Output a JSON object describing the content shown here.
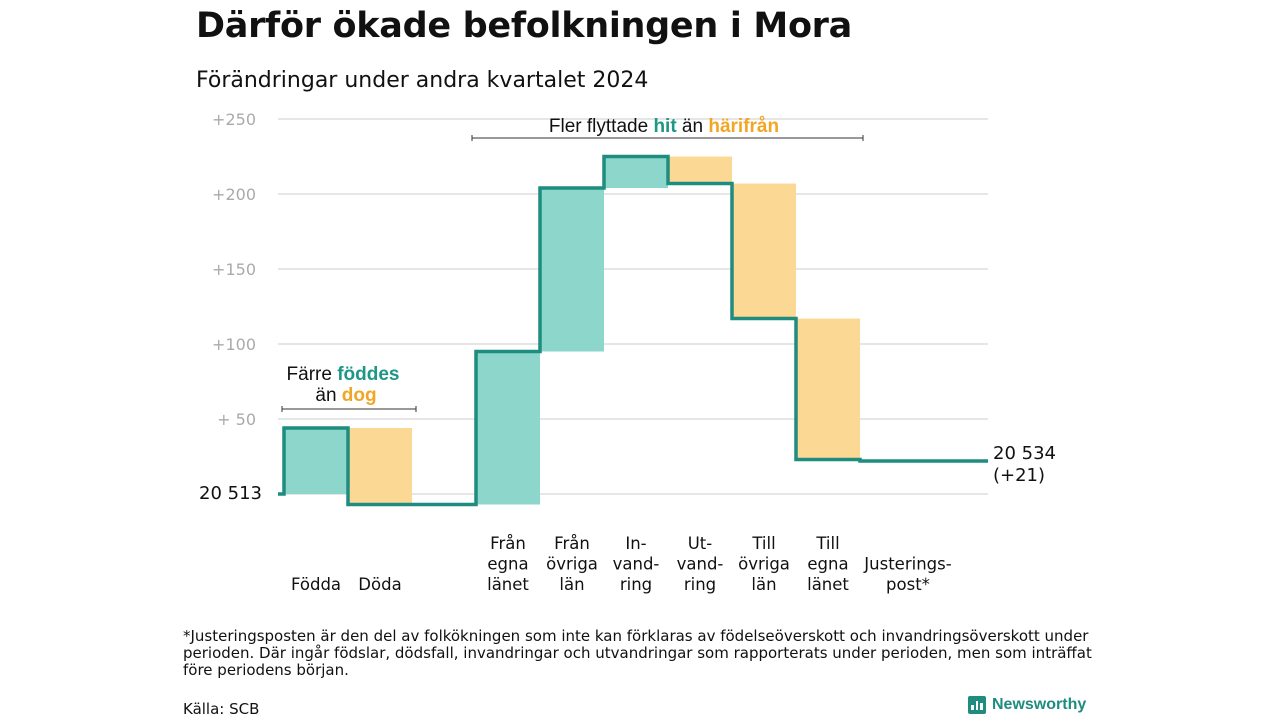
{
  "title": "Därför ökade befolkningen i Mora",
  "subtitle": "Förändringar under andra kvartalet 2024",
  "chart_data": {
    "type": "waterfall",
    "start": {
      "label": "20 513",
      "value": 20513
    },
    "end": {
      "label_line1": "20 534",
      "label_line2": "(+21)",
      "value": 20534
    },
    "y_ticks": [
      {
        "value": 50,
        "label": "+  50"
      },
      {
        "value": 100,
        "label": "+100"
      },
      {
        "value": 150,
        "label": "+150"
      },
      {
        "value": 200,
        "label": "+200"
      },
      {
        "value": 250,
        "label": "+250"
      }
    ],
    "ylim": [
      0,
      250
    ],
    "grid": true,
    "steps": [
      {
        "label_lines": [
          "Födda"
        ],
        "value": 44,
        "kind": "in"
      },
      {
        "label_lines": [
          "Döda"
        ],
        "value": -51,
        "kind": "out"
      },
      {
        "label_lines": [],
        "value": 0,
        "kind": "gap"
      },
      {
        "label_lines": [
          "Från",
          "egna",
          "länet"
        ],
        "value": 102,
        "kind": "in"
      },
      {
        "label_lines": [
          "Från",
          "övriga",
          "län"
        ],
        "value": 109,
        "kind": "in"
      },
      {
        "label_lines": [
          "In-",
          "vand-",
          "ring"
        ],
        "value": 21,
        "kind": "in"
      },
      {
        "label_lines": [
          "Ut-",
          "vand-",
          "ring"
        ],
        "value": -18,
        "kind": "out"
      },
      {
        "label_lines": [
          "Till",
          "övriga",
          "län"
        ],
        "value": -90,
        "kind": "out"
      },
      {
        "label_lines": [
          "Till",
          "egna",
          "länet"
        ],
        "value": -94,
        "kind": "out"
      },
      {
        "label_lines": [
          "Justerings-",
          "post*"
        ],
        "value": -1,
        "kind": "adjust"
      }
    ],
    "annotations": [
      {
        "parts": [
          {
            "text": "Färre ",
            "color": "#111111",
            "bold": false
          },
          {
            "text": "föddes",
            "color": "#1e9688",
            "bold": true
          }
        ],
        "parts2": [
          {
            "text": "än ",
            "color": "#111111",
            "bold": false
          },
          {
            "text": "dog",
            "color": "#f2a626",
            "bold": true
          }
        ]
      },
      {
        "parts": [
          {
            "text": "Fler flyttade ",
            "color": "#111111",
            "bold": false
          },
          {
            "text": "hit",
            "color": "#1e9688",
            "bold": true
          },
          {
            "text": " än ",
            "color": "#111111",
            "bold": false
          },
          {
            "text": "härifrån",
            "color": "#f2a626",
            "bold": true
          }
        ]
      }
    ],
    "colors": {
      "in_fill": "#8dd6cc",
      "out_fill": "#fcd895",
      "line": "#1e8c7e",
      "grid": "#dddddd",
      "tick_text": "#aaaaaa"
    }
  },
  "footnote": "*Justeringsposten är den del av folkökningen som inte kan förklaras av födelseöverskott och invandringsöverskott under perioden. Där ingår födslar, dödsfall, invandringar och utvandringar som rapporterats under perioden, men som inträffat före periodens början.",
  "source": "Källa: SCB",
  "brand": {
    "name": "Newsworthy",
    "icon": "bar-chart-icon",
    "color": "#1e8c7e"
  }
}
